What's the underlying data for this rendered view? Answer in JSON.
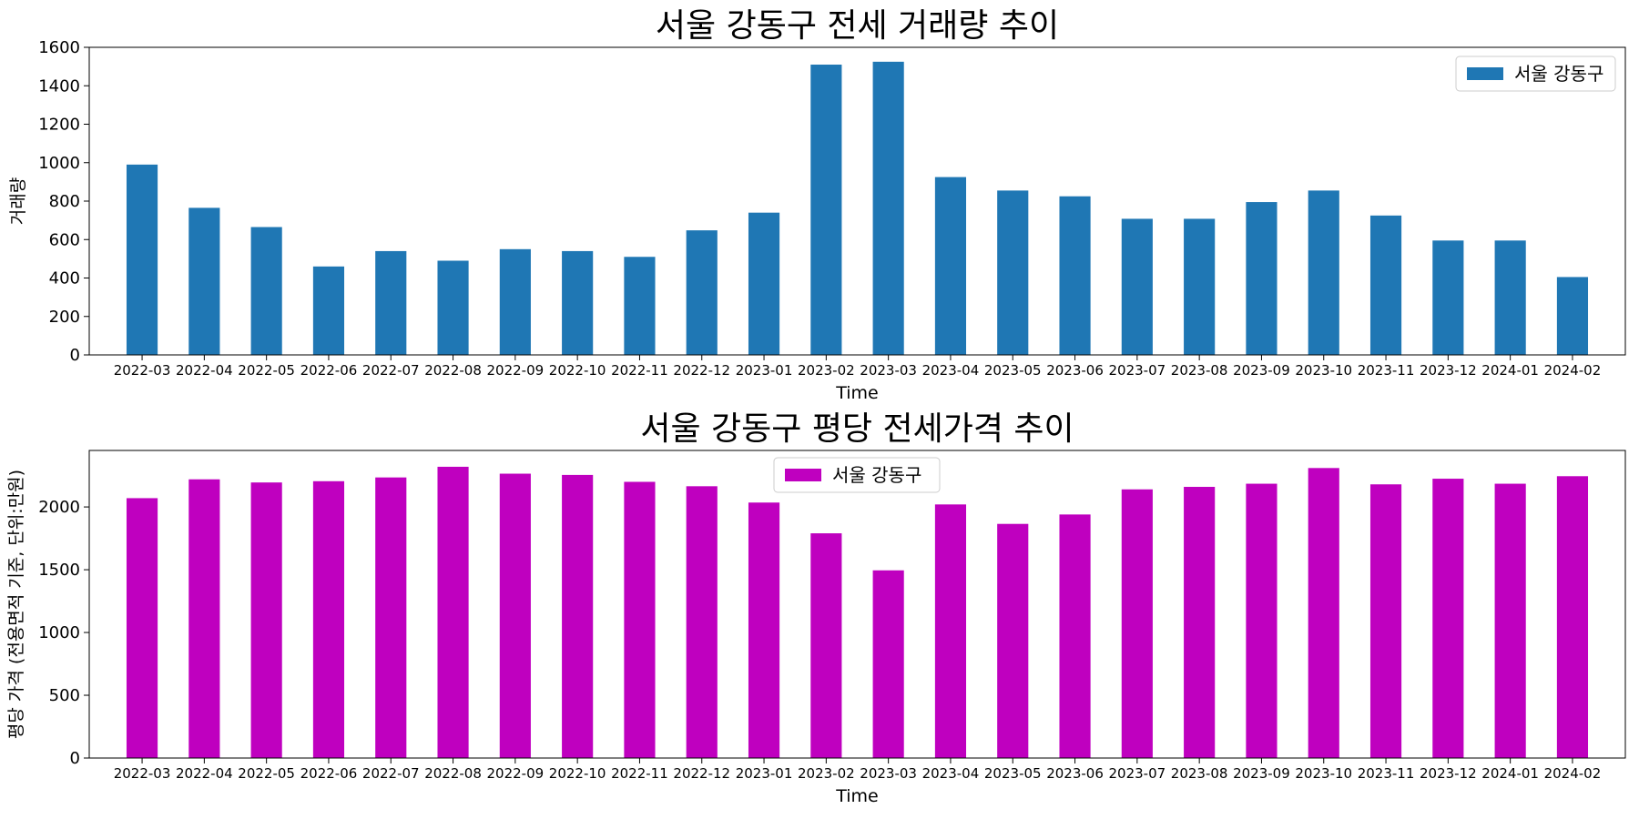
{
  "chart_data": [
    {
      "type": "bar",
      "title": "서울 강동구 전세 거래량 추이",
      "xlabel": "Time",
      "ylabel": "거래량",
      "ylim": [
        0,
        1600
      ],
      "yticks": [
        0,
        200,
        400,
        600,
        800,
        1000,
        1200,
        1400,
        1600
      ],
      "grid": false,
      "legend_position": "top-right",
      "categories": [
        "2022-03",
        "2022-04",
        "2022-05",
        "2022-06",
        "2022-07",
        "2022-08",
        "2022-09",
        "2022-10",
        "2022-11",
        "2022-12",
        "2023-01",
        "2023-02",
        "2023-03",
        "2023-04",
        "2023-05",
        "2023-06",
        "2023-07",
        "2023-08",
        "2023-09",
        "2023-10",
        "2023-11",
        "2023-12",
        "2024-01",
        "2024-02"
      ],
      "series": [
        {
          "name": "서울 강동구",
          "color": "#1f77b4",
          "values": [
            990,
            765,
            665,
            460,
            540,
            490,
            550,
            540,
            510,
            648,
            740,
            1510,
            1525,
            925,
            855,
            825,
            708,
            708,
            795,
            855,
            725,
            595,
            595,
            405
          ]
        }
      ]
    },
    {
      "type": "bar",
      "title": "서울 강동구 평당 전세가격 추이",
      "xlabel": "Time",
      "ylabel": "평당 가격 (전용면적 기준, 단위:만원)",
      "ylim": [
        0,
        2450
      ],
      "yticks": [
        0,
        500,
        1000,
        1500,
        2000
      ],
      "grid": false,
      "legend_position": "top-center",
      "categories": [
        "2022-03",
        "2022-04",
        "2022-05",
        "2022-06",
        "2022-07",
        "2022-08",
        "2022-09",
        "2022-10",
        "2022-11",
        "2022-12",
        "2023-01",
        "2023-02",
        "2023-03",
        "2023-04",
        "2023-05",
        "2023-06",
        "2023-07",
        "2023-08",
        "2023-09",
        "2023-10",
        "2023-11",
        "2023-12",
        "2024-01",
        "2024-02"
      ],
      "series": [
        {
          "name": "서울 강동구",
          "color": "#bf00bf",
          "values": [
            2070,
            2220,
            2195,
            2205,
            2235,
            2320,
            2265,
            2255,
            2200,
            2165,
            2035,
            1790,
            1495,
            2020,
            1865,
            1940,
            2140,
            2160,
            2185,
            2310,
            2180,
            2225,
            2185,
            2245
          ]
        }
      ]
    }
  ]
}
